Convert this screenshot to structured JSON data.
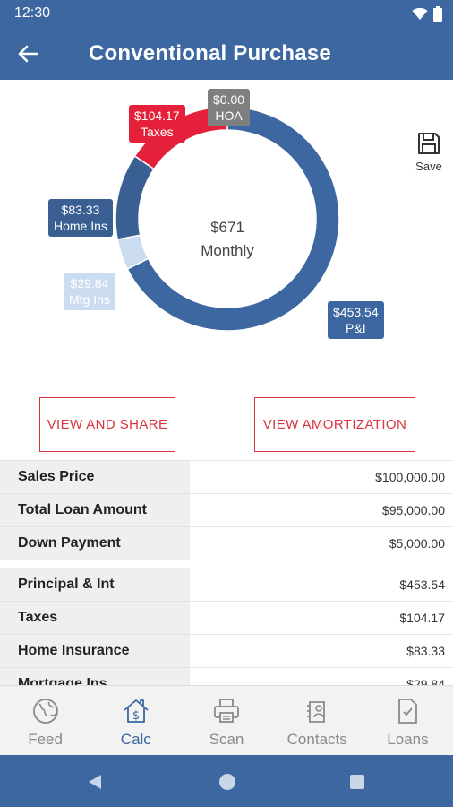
{
  "status_bar": {
    "time": "12:30"
  },
  "app_bar": {
    "title": "Conventional Purchase"
  },
  "chart_data": {
    "type": "pie",
    "categories": [
      "P&I",
      "Mtg Ins",
      "Home Ins",
      "Taxes",
      "HOA"
    ],
    "values": [
      453.54,
      29.84,
      83.33,
      104.17,
      0.0
    ],
    "value_labels": [
      "$453.54",
      "$29.84",
      "$83.33",
      "$104.17",
      "$0.00"
    ],
    "colors": [
      "#3d67a0",
      "#cbdcf0",
      "#3a5f93",
      "#e4203b",
      "#7f7f7f"
    ],
    "center_amount": "$671",
    "center_label": "Monthly"
  },
  "actions": {
    "save_label": "Save",
    "view_share": "VIEW AND SHARE",
    "view_amortization": "VIEW AMORTIZATION"
  },
  "summary_rows": [
    {
      "label": "Sales Price",
      "value": "$100,000.00"
    },
    {
      "label": "Total Loan Amount",
      "value": "$95,000.00"
    },
    {
      "label": "Down Payment",
      "value": "$5,000.00"
    }
  ],
  "payment_rows": [
    {
      "label": "Principal & Int",
      "value": "$453.54"
    },
    {
      "label": "Taxes",
      "value": "$104.17"
    },
    {
      "label": "Home Insurance",
      "value": "$83.33"
    },
    {
      "label": "Mortgage Ins",
      "value": "$29.84"
    }
  ],
  "bottom_nav": {
    "items": [
      {
        "label": "Feed",
        "icon": "globe-icon"
      },
      {
        "label": "Calc",
        "icon": "house-dollar-icon"
      },
      {
        "label": "Scan",
        "icon": "printer-icon"
      },
      {
        "label": "Contacts",
        "icon": "contacts-icon"
      },
      {
        "label": "Loans",
        "icon": "document-check-icon"
      }
    ],
    "active": "Calc"
  }
}
